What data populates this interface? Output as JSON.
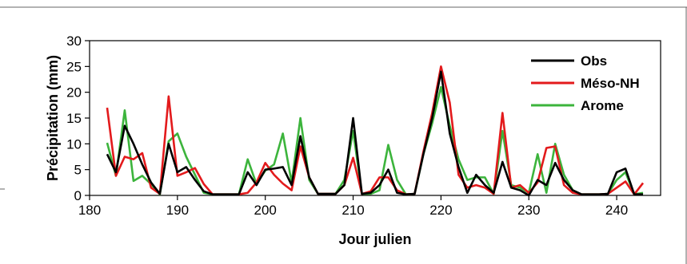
{
  "chart_data": {
    "type": "line",
    "xlabel": "Jour julien",
    "ylabel": "Précipitation (mm)",
    "xlim": [
      180,
      245
    ],
    "ylim": [
      0,
      30
    ],
    "xticks": [
      "180",
      "190",
      "200",
      "210",
      "220",
      "230",
      "240"
    ],
    "yticks": [
      "0",
      "5",
      "10",
      "15",
      "20",
      "25",
      "30"
    ],
    "legend_position": "top-right",
    "x": [
      182,
      183,
      184,
      185,
      186,
      187,
      188,
      189,
      190,
      191,
      192,
      193,
      194,
      195,
      196,
      197,
      198,
      199,
      200,
      201,
      202,
      203,
      204,
      205,
      206,
      207,
      208,
      209,
      210,
      211,
      212,
      213,
      214,
      215,
      216,
      217,
      218,
      219,
      220,
      221,
      222,
      223,
      224,
      225,
      226,
      227,
      228,
      229,
      230,
      231,
      232,
      233,
      234,
      235,
      236,
      237,
      238,
      239,
      240,
      241,
      242,
      243
    ],
    "series": [
      {
        "name": "Obs",
        "color": "#000000",
        "values": [
          8,
          4.5,
          13.5,
          10,
          6,
          2.5,
          0.3,
          10,
          4.5,
          5.5,
          3,
          0.8,
          0.2,
          0.2,
          0.2,
          0.2,
          4.5,
          2,
          5,
          5.2,
          5.5,
          2,
          11.5,
          3.5,
          0.3,
          0.3,
          0.3,
          2,
          15,
          0.3,
          0.5,
          2,
          5,
          0.5,
          0.2,
          0.3,
          8,
          15,
          24,
          12,
          5.5,
          0.5,
          4,
          2,
          0.5,
          6.5,
          1.5,
          1,
          0,
          3,
          2,
          6.3,
          3,
          1,
          0.2,
          0.2,
          0.2,
          0.3,
          4.5,
          5.2,
          0.2,
          0.2
        ]
      },
      {
        "name": "Méso-NH",
        "color": "#e31a1c",
        "values": [
          17,
          3.8,
          7.5,
          7,
          8.2,
          1.5,
          0.3,
          19.2,
          3.8,
          4.5,
          5.3,
          2.2,
          0.2,
          0.2,
          0.2,
          0.2,
          0.5,
          2.5,
          6.3,
          4,
          2.3,
          1,
          9.5,
          3.5,
          0.3,
          0.3,
          0.3,
          2,
          7.3,
          0.3,
          0.8,
          3.5,
          3.5,
          1,
          0.2,
          0.3,
          8.5,
          16,
          25,
          18,
          4,
          1.5,
          2,
          1.5,
          0.3,
          16,
          1.5,
          2,
          0.5,
          2.5,
          9.2,
          9.5,
          2,
          0.5,
          0.2,
          0.2,
          0.2,
          0.3,
          1.5,
          2.7,
          0.2,
          2.4
        ]
      },
      {
        "name": "Arome",
        "color": "#3cb43c",
        "values": [
          10.2,
          3.8,
          16.5,
          2.8,
          3.8,
          2.2,
          0.2,
          10.5,
          12,
          7.5,
          4,
          0.5,
          0.2,
          0.2,
          0.2,
          0.2,
          7,
          2.2,
          4.8,
          6,
          12,
          2.5,
          15,
          3,
          0.3,
          0.3,
          0.3,
          3,
          12.5,
          0.3,
          0.3,
          1,
          9.8,
          3,
          0.2,
          0.3,
          8,
          14,
          21,
          13.5,
          7,
          3,
          3.5,
          3.5,
          0.3,
          12.5,
          2,
          1.5,
          0.5,
          8,
          0.5,
          10,
          4,
          1,
          0.2,
          0.2,
          0.2,
          0.3,
          3,
          4.5,
          0.2,
          0.5
        ]
      }
    ]
  }
}
